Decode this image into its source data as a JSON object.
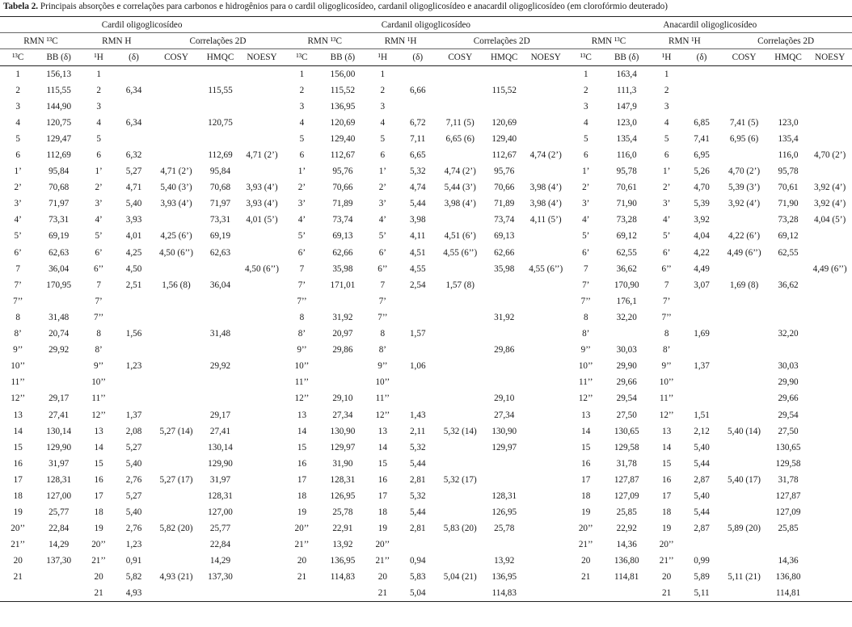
{
  "caption": {
    "label": "Tabela 2.",
    "text": "Principais absorções e correlações para carbonos e hidrogênios para o cardil oligoglicosídeo, cardanil oligoglicosídeo e anacardil oligoglicosídeo (em clorofórmio deuterado)"
  },
  "groups": [
    "Cardil oligoglicosídeo",
    "Cardanil oligoglicosídeo",
    "Anacardil oligoglicosídeo"
  ],
  "subgroups": [
    [
      "RMN ¹³C",
      "RMN H",
      "Correlações 2D"
    ],
    [
      "RMN ¹³C",
      "RMN ¹H",
      "Correlações 2D"
    ],
    [
      "RMN ¹³C",
      "RMN ¹H",
      "Correlações 2D"
    ]
  ],
  "columns": [
    "¹³C",
    "BB (δ)",
    "¹H",
    "(δ)",
    "COSY",
    "HMQC",
    "NOESY"
  ],
  "rows": [
    [
      "1",
      "156,13",
      "1",
      "",
      "",
      "",
      "",
      "1",
      "156,00",
      "1",
      "",
      "",
      "",
      "",
      "1",
      "163,4",
      "1",
      "",
      "",
      "",
      ""
    ],
    [
      "2",
      "115,55",
      "2",
      "6,34",
      "",
      "115,55",
      "",
      "2",
      "115,52",
      "2",
      "6,66",
      "",
      "115,52",
      "",
      "2",
      "111,3",
      "2",
      "",
      "",
      "",
      ""
    ],
    [
      "3",
      "144,90",
      "3",
      "",
      "",
      "",
      "",
      "3",
      "136,95",
      "3",
      "",
      "",
      "",
      "",
      "3",
      "147,9",
      "3",
      "",
      "",
      "",
      ""
    ],
    [
      "4",
      "120,75",
      "4",
      "6,34",
      "",
      "120,75",
      "",
      "4",
      "120,69",
      "4",
      "6,72",
      "7,11 (5)",
      "120,69",
      "",
      "4",
      "123,0",
      "4",
      "6,85",
      "7,41 (5)",
      "123,0",
      ""
    ],
    [
      "5",
      "129,47",
      "5",
      "",
      "",
      "",
      "",
      "5",
      "129,40",
      "5",
      "7,11",
      "6,65 (6)",
      "129,40",
      "",
      "5",
      "135,4",
      "5",
      "7,41",
      "6,95 (6)",
      "135,4",
      ""
    ],
    [
      "6",
      "112,69",
      "6",
      "6,32",
      "",
      "112,69",
      "4,71 (2’)",
      "6",
      "112,67",
      "6",
      "6,65",
      "",
      "112,67",
      "4,74 (2’)",
      "6",
      "116,0",
      "6",
      "6,95",
      "",
      "116,0",
      "4,70 (2’)"
    ],
    [
      "1’",
      "95,84",
      "1’",
      "5,27",
      "4,71 (2’)",
      "95,84",
      "",
      "1’",
      "95,76",
      "1’",
      "5,32",
      "4,74 (2’)",
      "95,76",
      "",
      "1’",
      "95,78",
      "1’",
      "5,26",
      "4,70 (2’)",
      "95,78",
      ""
    ],
    [
      "2’",
      "70,68",
      "2’",
      "4,71",
      "5,40 (3’)",
      "70,68",
      "3,93 (4’)",
      "2’",
      "70,66",
      "2’",
      "4,74",
      "5,44 (3’)",
      "70,66",
      "3,98 (4’)",
      "2’",
      "70,61",
      "2’",
      "4,70",
      "5,39 (3’)",
      "70,61",
      "3,92 (4’)"
    ],
    [
      "3’",
      "71,97",
      "3’",
      "5,40",
      "3,93 (4’)",
      "71,97",
      "3,93 (4’)",
      "3’",
      "71,89",
      "3’",
      "5,44",
      "3,98 (4’)",
      "71,89",
      "3,98 (4’)",
      "3’",
      "71,90",
      "3’",
      "5,39",
      "3,92 (4’)",
      "71,90",
      "3,92 (4’)"
    ],
    [
      "4’",
      "73,31",
      "4’",
      "3,93",
      "",
      "73,31",
      "4,01 (5’)",
      "4’",
      "73,74",
      "4’",
      "3,98",
      "",
      "73,74",
      "4,11 (5’)",
      "4’",
      "73,28",
      "4’",
      "3,92",
      "",
      "73,28",
      "4,04 (5’)"
    ],
    [
      "5’",
      "69,19",
      "5’",
      "4,01",
      "4,25 (6’)",
      "69,19",
      "",
      "5’",
      "69,13",
      "5’",
      "4,11",
      "4,51 (6’)",
      "69,13",
      "",
      "5’",
      "69,12",
      "5’",
      "4,04",
      "4,22 (6’)",
      "69,12",
      ""
    ],
    [
      "6’",
      "62,63",
      "6’",
      "4,25",
      "4,50 (6’’)",
      "62,63",
      "",
      "6’",
      "62,66",
      "6’",
      "4,51",
      "4,55 (6’’)",
      "62,66",
      "",
      "6’",
      "62,55",
      "6’",
      "4,22",
      "4,49 (6’’)",
      "62,55",
      ""
    ],
    [
      "7",
      "36,04",
      "6’’",
      "4,50",
      "",
      "",
      "4,50 (6’’)",
      "7",
      "35,98",
      "6’’",
      "4,55",
      "",
      "35,98",
      "4,55 (6’’)",
      "7",
      "36,62",
      "6’’",
      "4,49",
      "",
      "",
      "4,49 (6’’)"
    ],
    [
      "7’",
      "170,95",
      "7",
      "2,51",
      "1,56 (8)",
      "36,04",
      "",
      "7’",
      "171,01",
      "7",
      "2,54",
      "1,57 (8)",
      "",
      "",
      "7’",
      "170,90",
      "7",
      "3,07",
      "1,69 (8)",
      "36,62",
      ""
    ],
    [
      "7’’",
      "",
      "7’",
      "",
      "",
      "",
      "",
      "7’’",
      "",
      "7’",
      "",
      "",
      "",
      "",
      "7’’",
      "176,1",
      "7’",
      "",
      "",
      "",
      ""
    ],
    [
      "8",
      "31,48",
      "7’’",
      "",
      "",
      "",
      "",
      "8",
      "31,92",
      "7’’",
      "",
      "",
      "31,92",
      "",
      "8",
      "32,20",
      "7’’",
      "",
      "",
      "",
      ""
    ],
    [
      "8’",
      "20,74",
      "8",
      "1,56",
      "",
      "31,48",
      "",
      "8’",
      "20,97",
      "8",
      "1,57",
      "",
      "",
      "",
      "8’",
      "",
      "8",
      "1,69",
      "",
      "32,20",
      ""
    ],
    [
      "9’’",
      "29,92",
      "8’",
      "",
      "",
      "",
      "",
      "9’’",
      "29,86",
      "8’",
      "",
      "",
      "29,86",
      "",
      "9’’",
      "30,03",
      "8’",
      "",
      "",
      "",
      ""
    ],
    [
      "10’’",
      "",
      "9’’",
      "1,23",
      "",
      "29,92",
      "",
      "10’’",
      "",
      "9’’",
      "1,06",
      "",
      "",
      "",
      "10’’",
      "29,90",
      "9’’",
      "1,37",
      "",
      "30,03",
      ""
    ],
    [
      "11’’",
      "",
      "10’’",
      "",
      "",
      "",
      "",
      "11’’",
      "",
      "10’’",
      "",
      "",
      "",
      "",
      "11’’",
      "29,66",
      "10’’",
      "",
      "",
      "29,90",
      ""
    ],
    [
      "12’’",
      "29,17",
      "11’’",
      "",
      "",
      "",
      "",
      "12’’",
      "29,10",
      "11’’",
      "",
      "",
      "29,10",
      "",
      "12’’",
      "29,54",
      "11’’",
      "",
      "",
      "29,66",
      ""
    ],
    [
      "13",
      "27,41",
      "12’’",
      "1,37",
      "",
      "29,17",
      "",
      "13",
      "27,34",
      "12’’",
      "1,43",
      "",
      "27,34",
      "",
      "13",
      "27,50",
      "12’’",
      "1,51",
      "",
      "29,54",
      ""
    ],
    [
      "14",
      "130,14",
      "13",
      "2,08",
      "5,27 (14)",
      "27,41",
      "",
      "14",
      "130,90",
      "13",
      "2,11",
      "5,32 (14)",
      "130,90",
      "",
      "14",
      "130,65",
      "13",
      "2,12",
      "5,40 (14)",
      "27,50",
      ""
    ],
    [
      "15",
      "129,90",
      "14",
      "5,27",
      "",
      "130,14",
      "",
      "15",
      "129,97",
      "14",
      "5,32",
      "",
      "129,97",
      "",
      "15",
      "129,58",
      "14",
      "5,40",
      "",
      "130,65",
      ""
    ],
    [
      "16",
      "31,97",
      "15",
      "5,40",
      "",
      "129,90",
      "",
      "16",
      "31,90",
      "15",
      "5,44",
      "",
      "",
      "",
      "16",
      "31,78",
      "15",
      "5,44",
      "",
      "129,58",
      ""
    ],
    [
      "17",
      "128,31",
      "16",
      "2,76",
      "5,27 (17)",
      "31,97",
      "",
      "17",
      "128,31",
      "16",
      "2,81",
      "5,32 (17)",
      "",
      "",
      "17",
      "127,87",
      "16",
      "2,87",
      "5,40 (17)",
      "31,78",
      ""
    ],
    [
      "18",
      "127,00",
      "17",
      "5,27",
      "",
      "128,31",
      "",
      "18",
      "126,95",
      "17",
      "5,32",
      "",
      "128,31",
      "",
      "18",
      "127,09",
      "17",
      "5,40",
      "",
      "127,87",
      ""
    ],
    [
      "19",
      "25,77",
      "18",
      "5,40",
      "",
      "127,00",
      "",
      "19",
      "25,78",
      "18",
      "5,44",
      "",
      "126,95",
      "",
      "19",
      "25,85",
      "18",
      "5,44",
      "",
      "127,09",
      ""
    ],
    [
      "20’’",
      "22,84",
      "19",
      "2,76",
      "5,82 (20)",
      "25,77",
      "",
      "20’’",
      "22,91",
      "19",
      "2,81",
      "5,83 (20)",
      "25,78",
      "",
      "20’’",
      "22,92",
      "19",
      "2,87",
      "5,89 (20)",
      "25,85",
      ""
    ],
    [
      "21’’",
      "14,29",
      "20’’",
      "1,23",
      "",
      "22,84",
      "",
      "21’’",
      "13,92",
      "20’’",
      "",
      "",
      "",
      "",
      "21’’",
      "14,36",
      "20’’",
      "",
      "",
      "",
      ""
    ],
    [
      "20",
      "137,30",
      "21’’",
      "0,91",
      "",
      "14,29",
      "",
      "20",
      "136,95",
      "21’’",
      "0,94",
      "",
      "13,92",
      "",
      "20",
      "136,80",
      "21’’",
      "0,99",
      "",
      "14,36",
      ""
    ],
    [
      "21",
      "",
      "20",
      "5,82",
      "4,93 (21)",
      "137,30",
      "",
      "21",
      "114,83",
      "20",
      "5,83",
      "5,04 (21)",
      "136,95",
      "",
      "21",
      "114,81",
      "20",
      "5,89",
      "5,11 (21)",
      "136,80",
      ""
    ],
    [
      "",
      "",
      "21",
      "4,93",
      "",
      "",
      "",
      "",
      "",
      "21",
      "5,04",
      "",
      "114,83",
      "",
      "",
      "",
      "21",
      "5,11",
      "",
      "114,81",
      ""
    ]
  ]
}
